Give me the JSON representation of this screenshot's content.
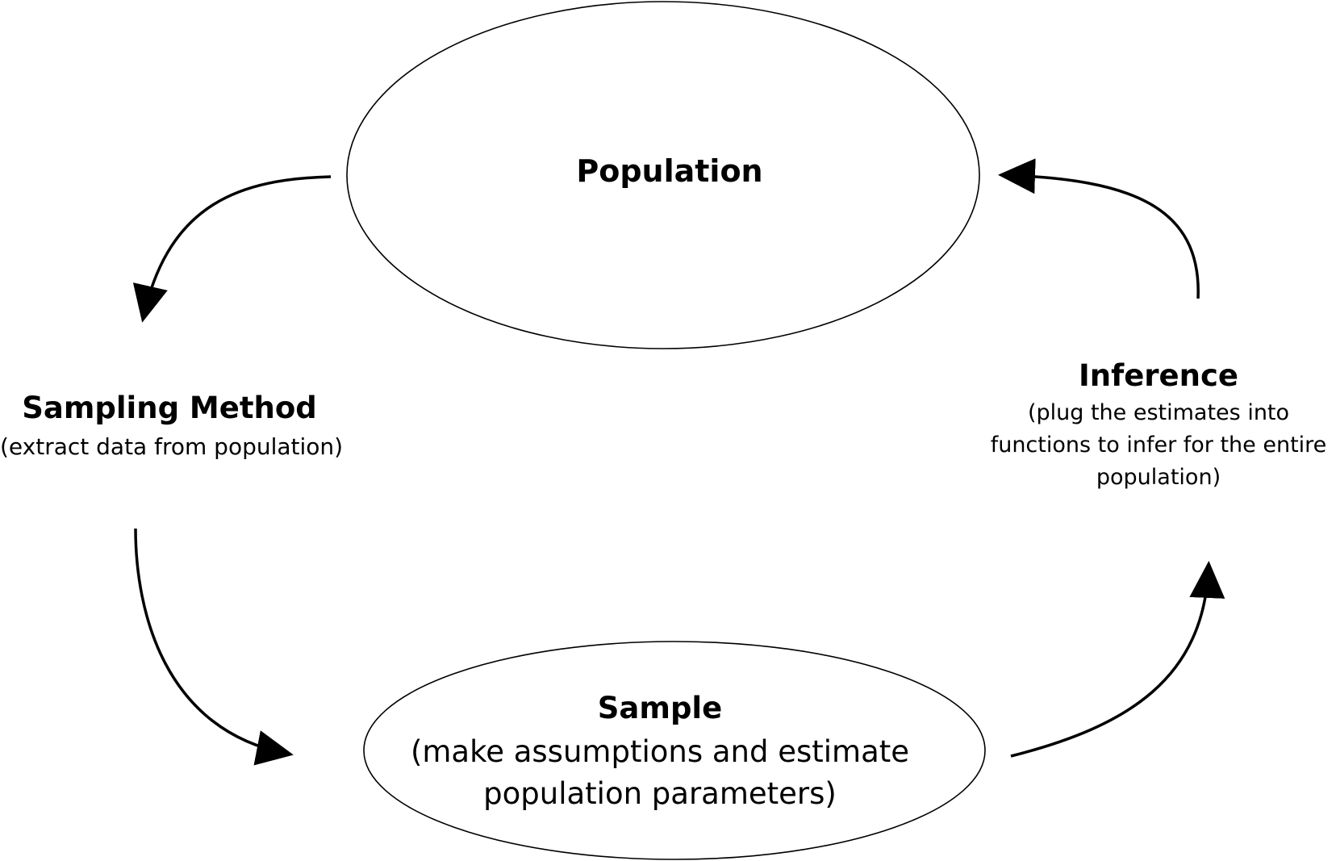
{
  "nodes": {
    "population": {
      "title": "Population"
    },
    "sampling_method": {
      "title": "Sampling Method",
      "description": "(extract data from  population)"
    },
    "sample": {
      "title": "Sample",
      "description_lines": [
        "(make assumptions and estimate",
        "population parameters)"
      ]
    },
    "inference": {
      "title": "Inference",
      "description_lines": [
        "(plug the estimates  into",
        "functions to infer for  the entire",
        "population)"
      ]
    }
  },
  "style": {
    "stroke_color": "#000000",
    "background_color": "#ffffff"
  }
}
